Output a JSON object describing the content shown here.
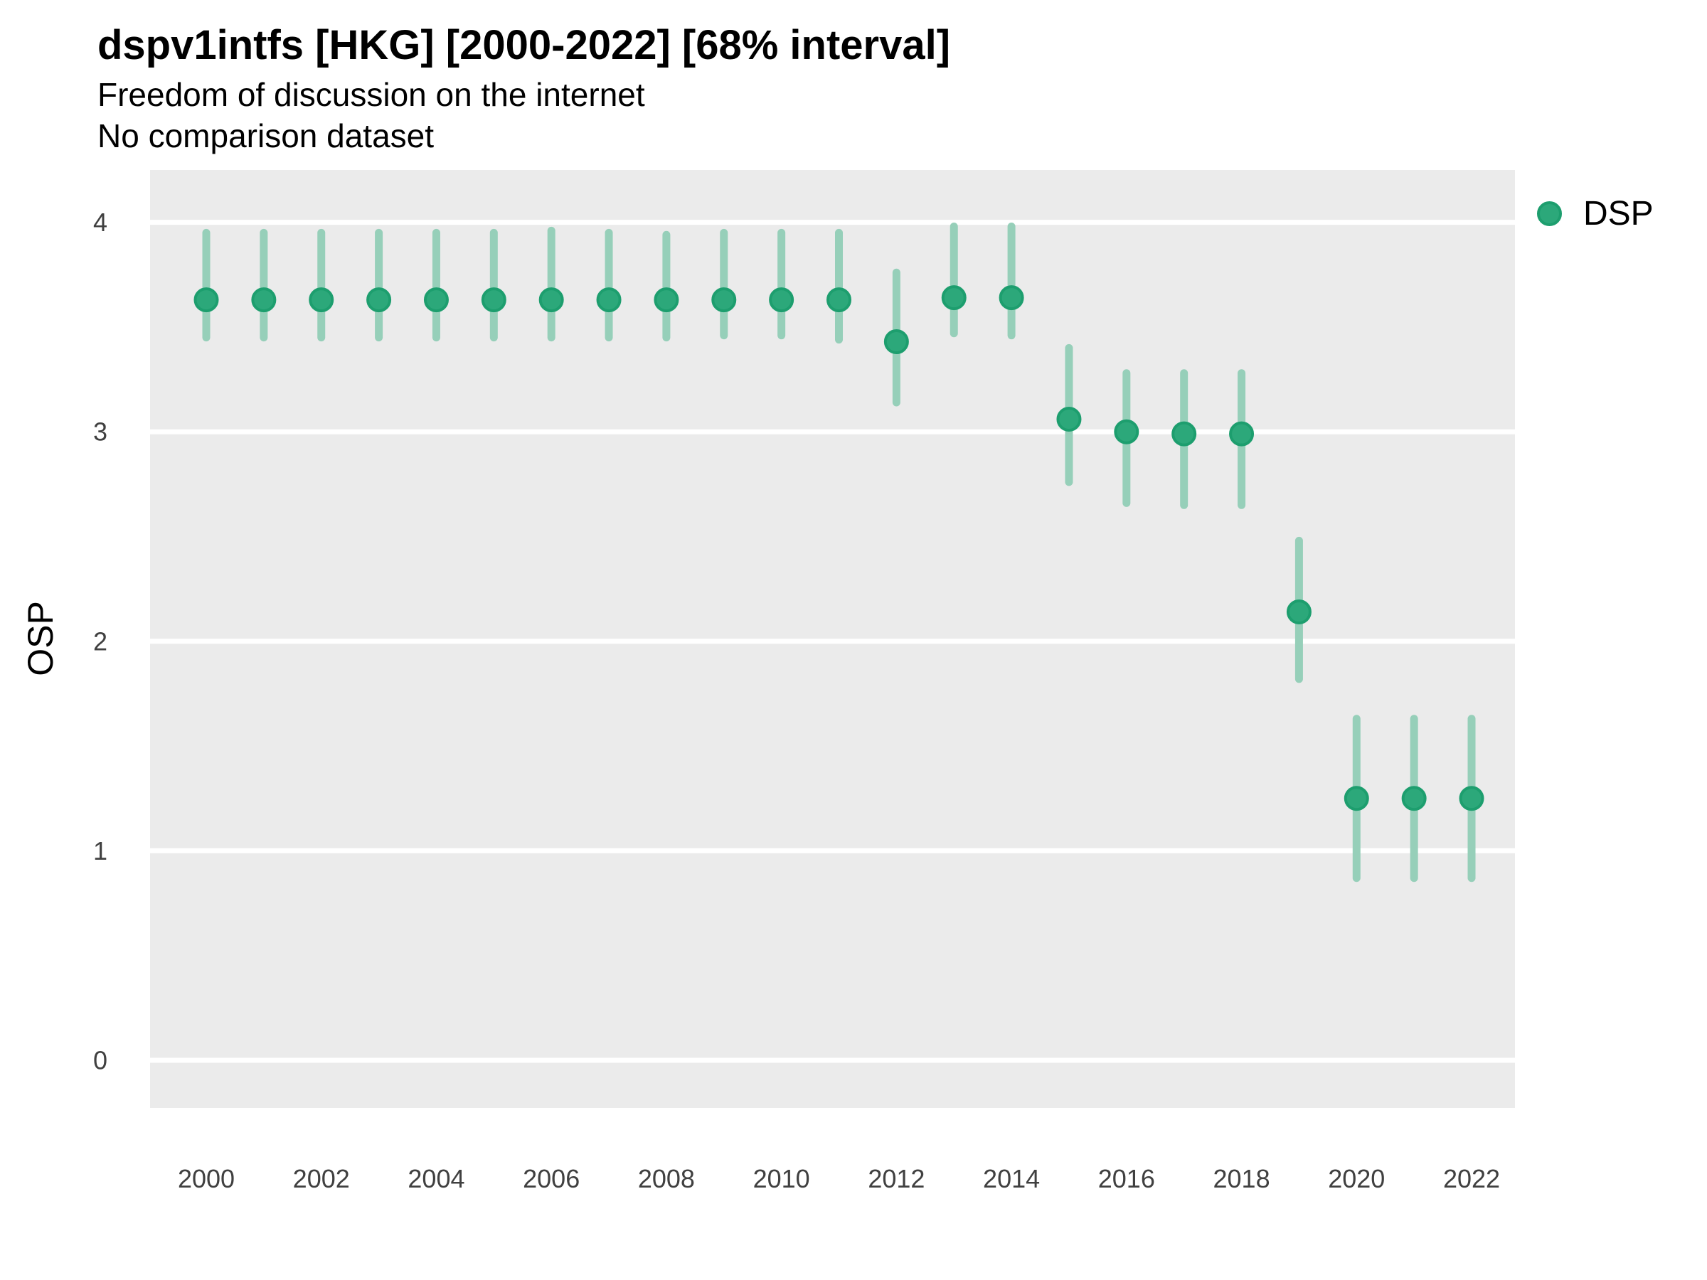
{
  "chart_data": {
    "type": "scatter",
    "mark": "pointrange",
    "title": "dspv1intfs [HKG] [2000-2022] [68% interval]",
    "subtitle": "Freedom of discussion on the internet",
    "note": "No comparison dataset",
    "ylabel": "OSP",
    "xlabel": "",
    "interval_level": "68%",
    "ylim": [
      -0.23,
      4.25
    ],
    "xlim": [
      1999.0,
      2022.75
    ],
    "y_ticks": [
      "0",
      "1",
      "2",
      "3",
      "4"
    ],
    "x_ticks": [
      "2000",
      "2002",
      "2004",
      "2006",
      "2008",
      "2010",
      "2012",
      "2014",
      "2016",
      "2018",
      "2020",
      "2022"
    ],
    "grid": "horizontal major gridlines only, white on gray panel",
    "legend_position": "right-top",
    "series": [
      {
        "name": "DSP",
        "x": [
          2000,
          2001,
          2002,
          2003,
          2004,
          2005,
          2006,
          2007,
          2008,
          2009,
          2010,
          2011,
          2012,
          2013,
          2014,
          2015,
          2016,
          2017,
          2018,
          2019,
          2020,
          2021,
          2022
        ],
        "est": [
          3.63,
          3.63,
          3.63,
          3.63,
          3.63,
          3.63,
          3.63,
          3.63,
          3.63,
          3.63,
          3.63,
          3.63,
          3.43,
          3.64,
          3.64,
          3.06,
          3.0,
          2.99,
          2.99,
          2.14,
          1.25,
          1.25,
          1.25
        ],
        "lo": [
          3.45,
          3.45,
          3.45,
          3.45,
          3.45,
          3.45,
          3.45,
          3.45,
          3.45,
          3.46,
          3.46,
          3.44,
          3.14,
          3.47,
          3.46,
          2.76,
          2.66,
          2.65,
          2.65,
          1.82,
          0.87,
          0.87,
          0.87
        ],
        "hi": [
          3.95,
          3.95,
          3.95,
          3.95,
          3.95,
          3.95,
          3.96,
          3.95,
          3.94,
          3.95,
          3.95,
          3.95,
          3.76,
          3.98,
          3.98,
          3.4,
          3.28,
          3.28,
          3.28,
          2.48,
          1.63,
          1.63,
          1.63
        ]
      }
    ]
  },
  "colors": {
    "point_fill": "#2CA87A",
    "point_stroke": "#1D9E6E",
    "interval_bar": "#96CFB9",
    "panel_background": "#EBEBEB",
    "gridline": "#FFFFFF",
    "axis_text": "#404040",
    "title_text": "#000000"
  }
}
